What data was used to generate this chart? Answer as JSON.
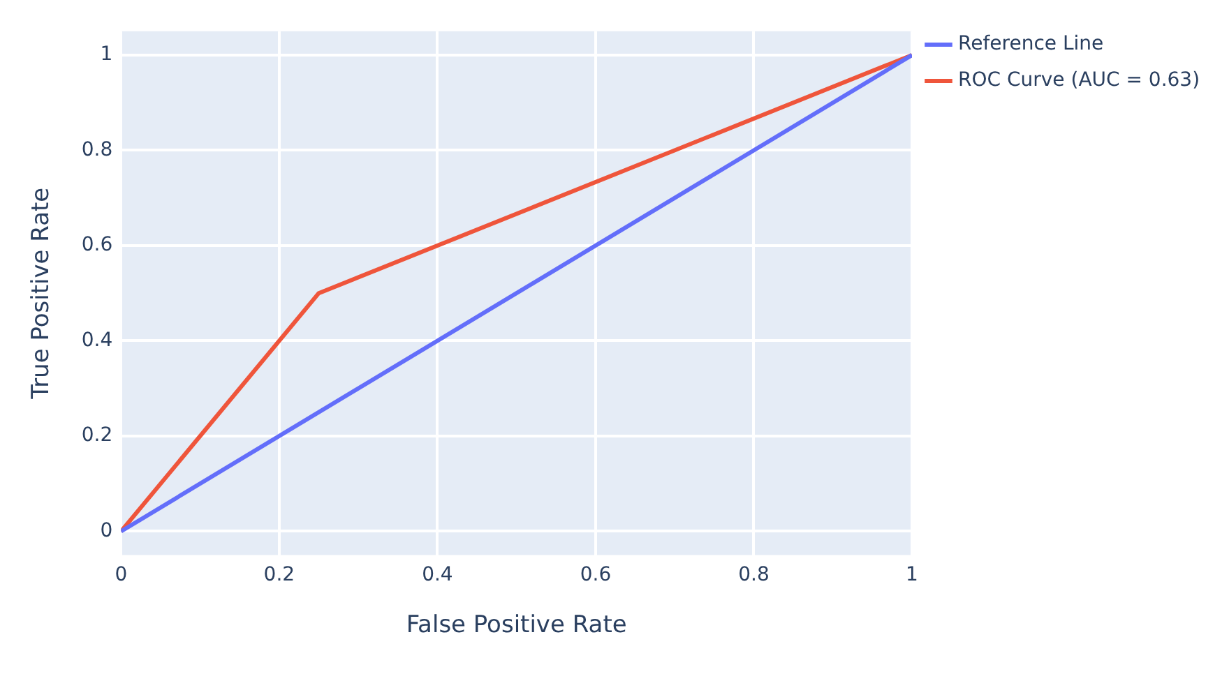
{
  "chart_data": {
    "type": "line",
    "xlabel": "False Positive Rate",
    "ylabel": "True Positive Rate",
    "series": [
      {
        "name": "Reference Line",
        "color": "#636efa",
        "x": [
          0,
          1
        ],
        "values": [
          0,
          1
        ]
      },
      {
        "name": "ROC Curve (AUC = 0.63)",
        "color": "#ef553b",
        "x": [
          0,
          0.25,
          1
        ],
        "values": [
          0,
          0.5,
          1
        ]
      }
    ],
    "xlim": [
      0,
      1
    ],
    "ylim": [
      -0.05,
      1.05
    ],
    "xticks": [
      0,
      0.2,
      0.4,
      0.6,
      0.8,
      1
    ],
    "yticks": [
      0,
      0.2,
      0.4,
      0.6,
      0.8,
      1
    ],
    "grid": true,
    "legend": "top right",
    "marker": "none",
    "line_style": "solid"
  }
}
